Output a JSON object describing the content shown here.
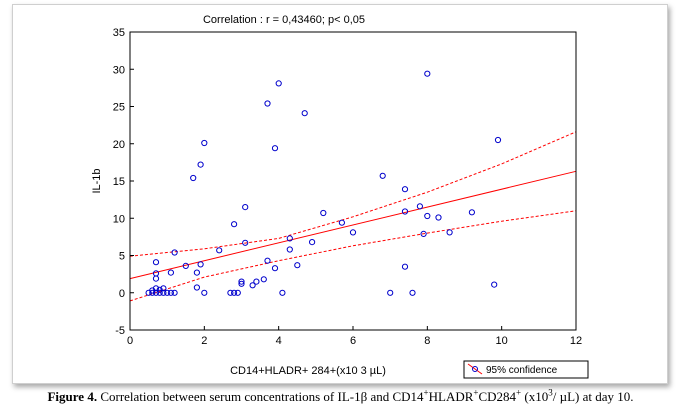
{
  "chart_data": {
    "type": "scatter",
    "title": "Correlation : r = 0,43460; p< 0,05",
    "xlabel": "CD14+HLADR+ 284+(x10 3 µL)",
    "ylabel": "IL-1b",
    "xlim": [
      0,
      12
    ],
    "ylim": [
      -5,
      35
    ],
    "x_ticks": [
      0,
      2,
      4,
      6,
      8,
      10,
      12
    ],
    "y_ticks": [
      -5,
      0,
      5,
      10,
      15,
      20,
      25,
      30,
      35
    ],
    "legend": {
      "label": "95% confidence",
      "placement": "bottom-right"
    },
    "colors": {
      "points": "#0000cc",
      "fit": "#ff0000",
      "confidence": "#ff0000"
    },
    "fit": {
      "intercept": 1.9,
      "slope": 1.2
    },
    "confidence_upper": [
      [
        0,
        4.9
      ],
      [
        2,
        5.9
      ],
      [
        4,
        7.3
      ],
      [
        6,
        10.2
      ],
      [
        8,
        13.5
      ],
      [
        10,
        17.3
      ],
      [
        12,
        21.6
      ]
    ],
    "confidence_lower": [
      [
        0,
        -1.1
      ],
      [
        2,
        2.1
      ],
      [
        4,
        4.3
      ],
      [
        6,
        6.3
      ],
      [
        8,
        8.0
      ],
      [
        10,
        9.6
      ],
      [
        12,
        11.0
      ]
    ],
    "points": [
      [
        0.5,
        0
      ],
      [
        0.6,
        0
      ],
      [
        0.7,
        0
      ],
      [
        0.8,
        0
      ],
      [
        0.9,
        0
      ],
      [
        1.0,
        0
      ],
      [
        1.1,
        0
      ],
      [
        1.2,
        0
      ],
      [
        0.6,
        0.3
      ],
      [
        0.7,
        0.6
      ],
      [
        0.8,
        0.4
      ],
      [
        0.9,
        0.6
      ],
      [
        0.7,
        1.9
      ],
      [
        0.7,
        2.6
      ],
      [
        0.7,
        4.1
      ],
      [
        1.1,
        2.7
      ],
      [
        1.2,
        5.4
      ],
      [
        1.5,
        3.6
      ],
      [
        1.8,
        0.7
      ],
      [
        1.8,
        2.7
      ],
      [
        1.9,
        3.8
      ],
      [
        2.0,
        0
      ],
      [
        1.7,
        15.4
      ],
      [
        1.9,
        17.2
      ],
      [
        2.0,
        20.1
      ],
      [
        2.4,
        5.7
      ],
      [
        2.7,
        0
      ],
      [
        2.8,
        0
      ],
      [
        2.9,
        0
      ],
      [
        2.8,
        9.2
      ],
      [
        3.0,
        1.2
      ],
      [
        3.0,
        1.5
      ],
      [
        3.1,
        6.7
      ],
      [
        3.1,
        11.5
      ],
      [
        3.3,
        1.0
      ],
      [
        3.4,
        1.5
      ],
      [
        3.6,
        1.8
      ],
      [
        3.7,
        4.3
      ],
      [
        3.9,
        3.3
      ],
      [
        3.7,
        25.4
      ],
      [
        4.0,
        28.1
      ],
      [
        3.9,
        19.4
      ],
      [
        4.1,
        0
      ],
      [
        4.3,
        5.8
      ],
      [
        4.3,
        7.3
      ],
      [
        4.5,
        3.7
      ],
      [
        4.7,
        24.1
      ],
      [
        4.9,
        6.8
      ],
      [
        5.2,
        10.7
      ],
      [
        5.7,
        9.4
      ],
      [
        6.0,
        8.1
      ],
      [
        6.8,
        15.7
      ],
      [
        7.0,
        0
      ],
      [
        7.4,
        13.9
      ],
      [
        7.4,
        3.5
      ],
      [
        7.4,
        10.9
      ],
      [
        7.6,
        0
      ],
      [
        7.8,
        11.6
      ],
      [
        7.9,
        7.9
      ],
      [
        8.0,
        29.4
      ],
      [
        8.0,
        10.3
      ],
      [
        8.3,
        10.1
      ],
      [
        8.6,
        8.1
      ],
      [
        9.2,
        10.8
      ],
      [
        9.8,
        1.1
      ],
      [
        9.9,
        20.5
      ]
    ]
  },
  "caption": {
    "label": "Figure 4.",
    "t1": " Correlation between serum concentrations of IL-1β and CD14",
    "s1": "+",
    "t2": "HLADR",
    "s2": "+",
    "t3": "CD284",
    "s3": "+",
    "t4": " (x10",
    "s4": "3",
    "t5": "/ µL) at day 10."
  }
}
